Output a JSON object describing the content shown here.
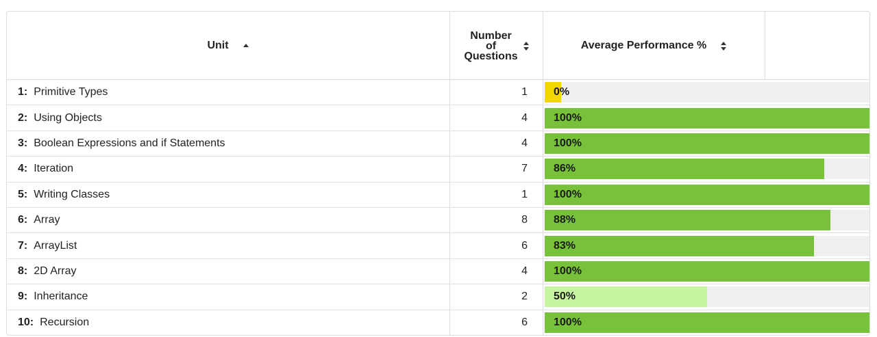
{
  "header": {
    "unit_label": "Unit",
    "count_label_lines": [
      "Number",
      "of",
      "Questions"
    ],
    "performance_label": "Average Performance %"
  },
  "colors": {
    "high": "#77c23a",
    "mid": "#c5f5a0",
    "low": "#f2d600",
    "track": "#efefef"
  },
  "rows": [
    {
      "num": "1:",
      "name": "Primitive Types",
      "count": "1",
      "pct": 0,
      "label": "0%",
      "color": "#f2d600"
    },
    {
      "num": "2:",
      "name": "Using Objects",
      "count": "4",
      "pct": 100,
      "label": "100%",
      "color": "#77c23a"
    },
    {
      "num": "3:",
      "name": "Boolean Expressions and if Statements",
      "count": "4",
      "pct": 100,
      "label": "100%",
      "color": "#77c23a"
    },
    {
      "num": "4:",
      "name": "Iteration",
      "count": "7",
      "pct": 86,
      "label": "86%",
      "color": "#77c23a"
    },
    {
      "num": "5:",
      "name": "Writing Classes",
      "count": "1",
      "pct": 100,
      "label": "100%",
      "color": "#77c23a"
    },
    {
      "num": "6:",
      "name": "Array",
      "count": "8",
      "pct": 88,
      "label": "88%",
      "color": "#77c23a"
    },
    {
      "num": "7:",
      "name": "ArrayList",
      "count": "6",
      "pct": 83,
      "label": "83%",
      "color": "#77c23a"
    },
    {
      "num": "8:",
      "name": "2D Array",
      "count": "4",
      "pct": 100,
      "label": "100%",
      "color": "#77c23a"
    },
    {
      "num": "9:",
      "name": "Inheritance",
      "count": "2",
      "pct": 50,
      "label": "50%",
      "color": "#c5f5a0"
    },
    {
      "num": "10:",
      "name": "Recursion",
      "count": "6",
      "pct": 100,
      "label": "100%",
      "color": "#77c23a"
    }
  ]
}
